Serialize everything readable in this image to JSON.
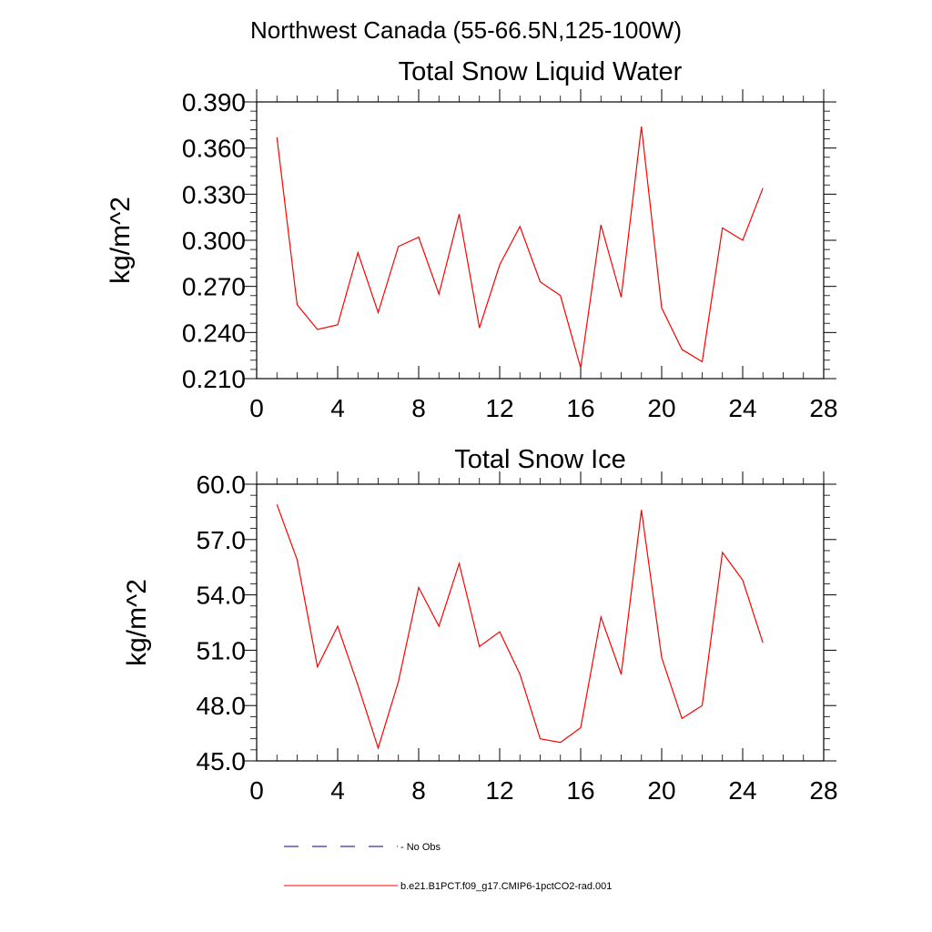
{
  "figure": {
    "suptitle": "Northwest Canada (55-66.5N,125-100W)"
  },
  "chart_data": [
    {
      "type": "line",
      "title": "Total Snow Liquid Water",
      "xlabel": "",
      "ylabel": "kg/m^2",
      "xlim": [
        0,
        28
      ],
      "ylim": [
        0.21,
        0.39
      ],
      "x_ticks": [
        0,
        4,
        8,
        12,
        16,
        20,
        24,
        28
      ],
      "x_tick_labels": [
        "0",
        "4",
        "8",
        "12",
        "16",
        "20",
        "24",
        "28"
      ],
      "y_ticks": [
        0.21,
        0.24,
        0.27,
        0.3,
        0.33,
        0.36,
        0.39
      ],
      "y_tick_labels": [
        "0.210",
        "0.240",
        "0.270",
        "0.300",
        "0.330",
        "0.360",
        "0.390"
      ],
      "grid": false,
      "series": [
        {
          "name": "b.e21.B1PCT.f09_g17.CMIP6-1pctCO2-rad.001",
          "color": "#ff0000",
          "x": [
            1,
            2,
            3,
            4,
            5,
            6,
            7,
            8,
            9,
            10,
            11,
            12,
            13,
            14,
            15,
            16,
            17,
            18,
            19,
            20,
            21,
            22,
            23,
            24,
            25
          ],
          "y": [
            0.367,
            0.258,
            0.242,
            0.245,
            0.292,
            0.253,
            0.296,
            0.302,
            0.265,
            0.317,
            0.243,
            0.284,
            0.309,
            0.273,
            0.264,
            0.217,
            0.31,
            0.263,
            0.374,
            0.256,
            0.229,
            0.221,
            0.308,
            0.3,
            0.334
          ]
        }
      ]
    },
    {
      "type": "line",
      "title": "Total Snow Ice",
      "xlabel": "",
      "ylabel": "kg/m^2",
      "xlim": [
        0,
        28
      ],
      "ylim": [
        45.0,
        60.0
      ],
      "x_ticks": [
        0,
        4,
        8,
        12,
        16,
        20,
        24,
        28
      ],
      "x_tick_labels": [
        "0",
        "4",
        "8",
        "12",
        "16",
        "20",
        "24",
        "28"
      ],
      "y_ticks": [
        45.0,
        48.0,
        51.0,
        54.0,
        57.0,
        60.0
      ],
      "y_tick_labels": [
        "45.0",
        "48.0",
        "51.0",
        "54.0",
        "57.0",
        "60.0"
      ],
      "grid": false,
      "series": [
        {
          "name": "b.e21.B1PCT.f09_g17.CMIP6-1pctCO2-rad.001",
          "color": "#ff0000",
          "x": [
            1,
            2,
            3,
            4,
            5,
            6,
            7,
            8,
            9,
            10,
            11,
            12,
            13,
            14,
            15,
            16,
            17,
            18,
            19,
            20,
            21,
            22,
            23,
            24,
            25
          ],
          "y": [
            58.9,
            55.9,
            50.1,
            52.3,
            49.1,
            45.7,
            49.3,
            54.4,
            52.3,
            55.7,
            51.2,
            52.0,
            49.7,
            46.2,
            46.0,
            46.8,
            52.8,
            49.7,
            58.6,
            50.6,
            47.3,
            48.0,
            56.3,
            54.8,
            51.4
          ]
        }
      ]
    }
  ],
  "legend": {
    "placement": "bottom",
    "entries": [
      {
        "label": "No Obs",
        "color": "#000080",
        "style": "dashed"
      },
      {
        "label": "b.e21.B1PCT.f09_g17.CMIP6-1pctCO2-rad.001",
        "color": "#ff0000",
        "style": "solid"
      }
    ]
  }
}
